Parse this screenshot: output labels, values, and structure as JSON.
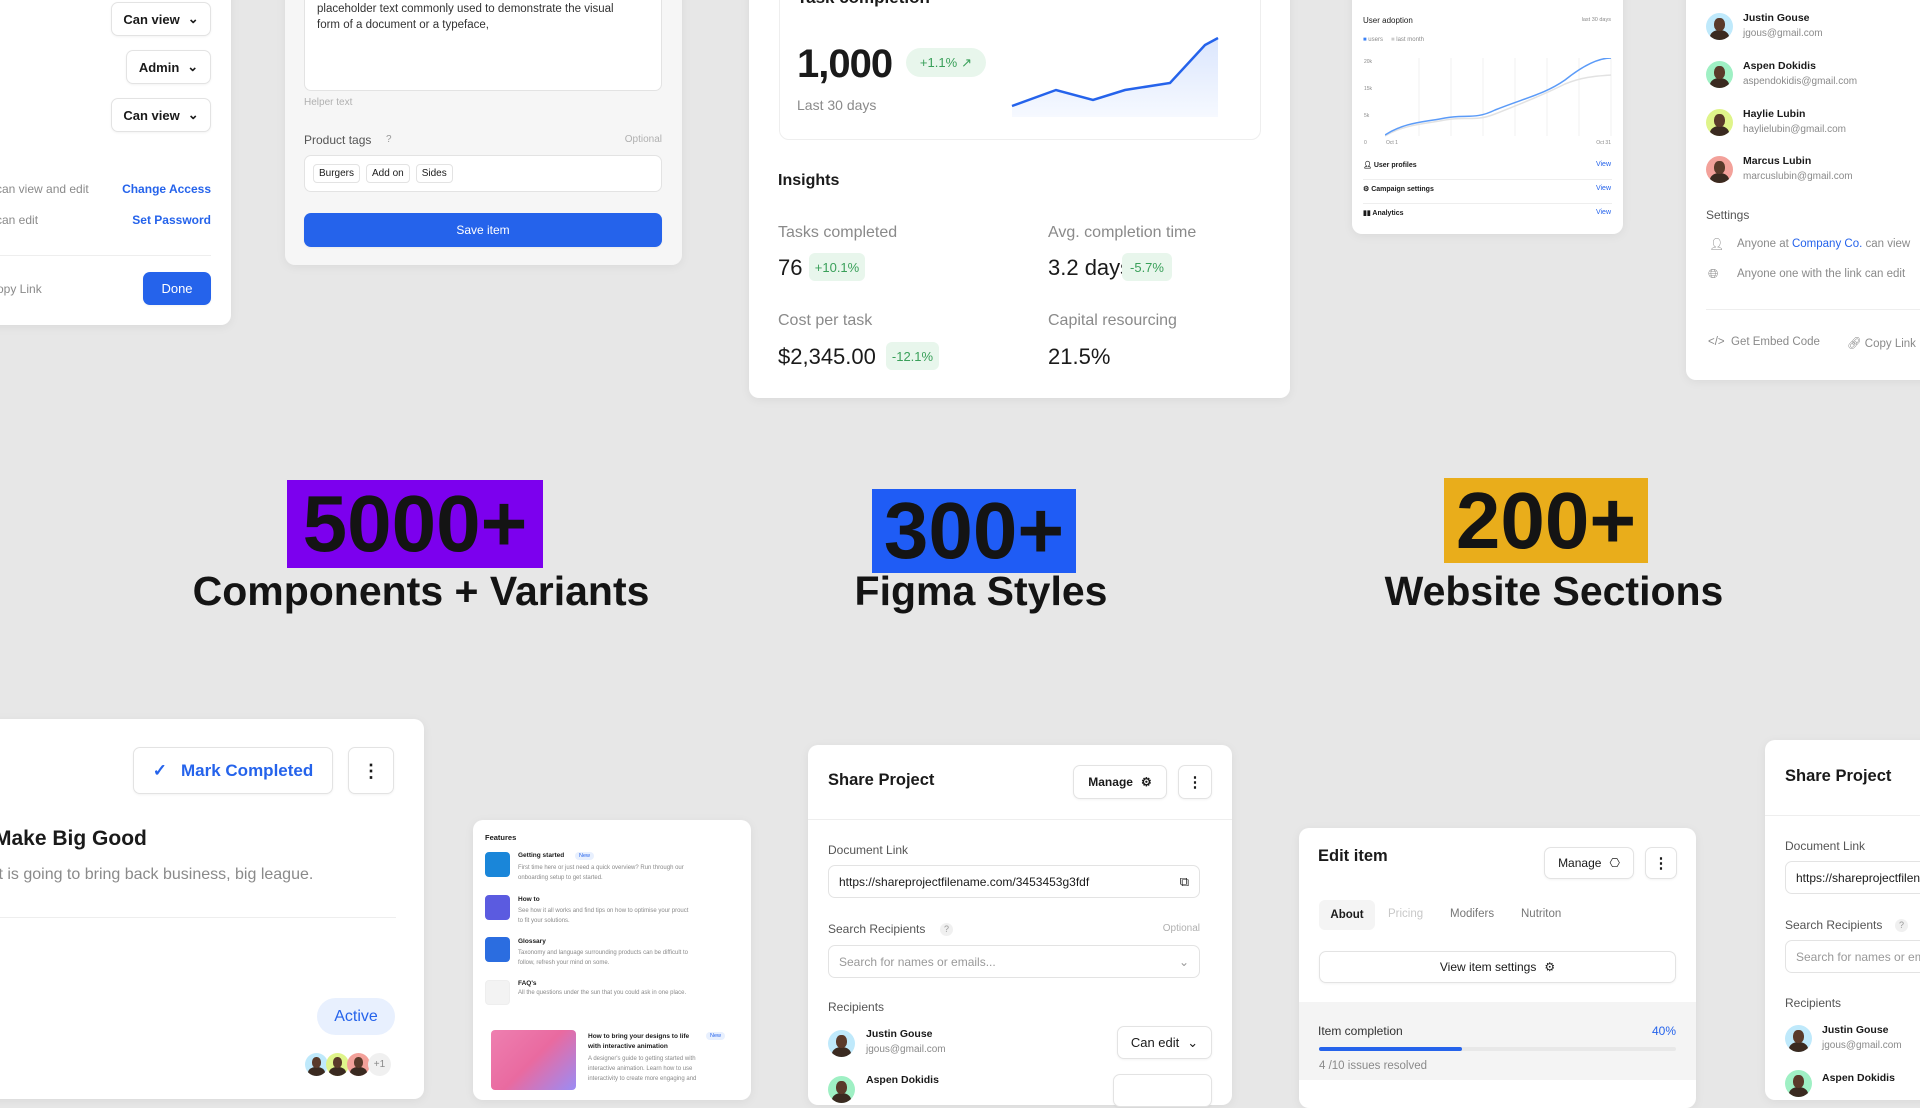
{
  "headlines": [
    {
      "number": "5000+",
      "label": "Components + Variants",
      "color": "#7c00ee"
    },
    {
      "number": "300+",
      "label": "Figma Styles",
      "color": "#1f5cf5"
    },
    {
      "number": "200+",
      "label": "Website Sections",
      "color": "#e9ad1b"
    }
  ],
  "share_modal_left": {
    "permissions": [
      "Can view",
      "Admin",
      "Can view"
    ],
    "settings": [
      {
        "text": "can view and edit",
        "action": "Change Access"
      },
      {
        "text": "can edit",
        "action": "Set Password"
      }
    ],
    "copy_link": "opy Link",
    "done": "Done"
  },
  "edit_product": {
    "description_lines": [
      "placeholder text commonly used to demonstrate the visual",
      "form of a document or a typeface,"
    ],
    "helper": "Helper text",
    "tags_label": "Product tags",
    "help": "?",
    "optional": "Optional",
    "tags": [
      "Burgers",
      "Add on",
      "Sides"
    ],
    "save": "Save item"
  },
  "task_completion": {
    "title": "Task completion",
    "value": "1,000",
    "change": "+1.1%",
    "period": "Last 30 days",
    "insights_title": "Insights",
    "insights": [
      {
        "label": "Tasks completed",
        "value": "76",
        "change": "+10.1%"
      },
      {
        "label": "Avg. completion time",
        "value": "3.2 days",
        "change": "-5.7%"
      },
      {
        "label": "Cost per task",
        "value": "$2,345.00",
        "change": "-12.1%"
      },
      {
        "label": "Capital resourcing",
        "value": "21.5%"
      }
    ],
    "accent": "#2563eb"
  },
  "user_adoption": {
    "title": "User adoption",
    "range": "last 30 days",
    "legend": [
      "users",
      "last month"
    ],
    "y_ticks": [
      "20k",
      "15k",
      "5k",
      "0"
    ],
    "x_ticks": [
      "Oct 1",
      "Oct 31"
    ],
    "rows": [
      {
        "label": "User profiles",
        "action": "View"
      },
      {
        "label": "Campaign settings",
        "action": "View"
      },
      {
        "label": "Analytics",
        "action": "View"
      }
    ]
  },
  "people_card": {
    "people": [
      {
        "name": "Justin Gouse",
        "email": "jgous@gmail.com",
        "color": "#bfe9fb"
      },
      {
        "name": "Aspen Dokidis",
        "email": "aspendokidis@gmail.com",
        "color": "#9ff0c4"
      },
      {
        "name": "Haylie Lubin",
        "email": "haylielubin@gmail.com",
        "color": "#dff48a"
      },
      {
        "name": "Marcus Lubin",
        "email": "marcuslubin@gmail.com",
        "color": "#f3a19a"
      }
    ],
    "settings_title": "Settings",
    "setting_1_prefix": "Anyone at ",
    "setting_1_link": "Company Co.",
    "setting_1_suffix": " can view",
    "setting_2": "Anyone one with the link can edit",
    "embed": "Get Embed Code",
    "copy": "Copy Link"
  },
  "task_card": {
    "mark_completed": "Mark Completed",
    "title": "Make Big Good",
    "description": "It is going to bring back business, big league.",
    "status": "Active",
    "extra_count": "+1"
  },
  "features": {
    "title": "Features",
    "items": [
      {
        "title": "Getting started",
        "badge": "New",
        "desc": [
          "First time here or just need a quick overview? Run through our",
          "onboarding setup to get started."
        ]
      },
      {
        "title": "How to",
        "desc": [
          "See how it all works and find tips on how to optimise your prouct",
          "to fit your solutions."
        ]
      },
      {
        "title": "Glossary",
        "desc": [
          "Taxonomy and language surrounding products can be difficult to",
          "follow, refresh your mind on some."
        ]
      },
      {
        "title": "FAQ's",
        "desc": [
          "All the questions under the sun that you could ask in one place."
        ]
      }
    ],
    "article": {
      "title": [
        "How to bring your designs to life",
        "with interactive animation"
      ],
      "badge": "New",
      "desc": [
        "A designer's guide to getting started with",
        "interactive animation. Learn how to use",
        "interactivity to create more engaging and"
      ]
    }
  },
  "share_project": {
    "title": "Share Project",
    "manage": "Manage",
    "doc_label": "Document Link",
    "doc_url": "https://shareprojectfilename.com/3453453g3fdf",
    "search_label": "Search Recipients",
    "help": "?",
    "optional": "Optional",
    "search_placeholder": "Search for names or emails...",
    "recipients_label": "Recipients",
    "recipients": [
      {
        "name": "Justin Gouse",
        "email": "jgous@gmail.com",
        "permission": "Can edit"
      },
      {
        "name": "Aspen Dokidis"
      }
    ]
  },
  "edit_item": {
    "title": "Edit item",
    "manage": "Manage",
    "tabs": [
      "About",
      "Pricing",
      "Modifers",
      "Nutriton"
    ],
    "settings_button": "View item settings",
    "completion_label": "Item completion",
    "completion_percent": "40%",
    "progress": 0.4,
    "issues": "4 /10 issues resolved"
  }
}
